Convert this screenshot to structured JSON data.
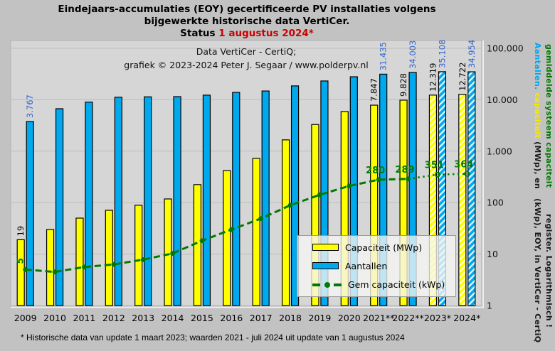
{
  "title": {
    "line1": "Eindejaars-accumulaties (EOY) gecertificeerde PV installaties volgens",
    "line2": "bijgewerkte historische data VertiCer.",
    "status_prefix": "Status ",
    "status_date": "1 augustus 2024*"
  },
  "subtitle": {
    "line1": "Data VertiCer - CertiQ;",
    "line2": "grafiek © 2023-2024 Peter J. Segaar / www.polderpv.nl"
  },
  "right_axis": {
    "line1_segments": [
      {
        "text": "Aantallen.",
        "color": "#00a7ee"
      },
      {
        "text": " capaciteit ",
        "color": "#f5e900"
      },
      {
        "text": "(MWp), en ",
        "color": "#1a1a1a"
      },
      {
        "text": "gemiddelde systeem capaciteit",
        "color": "#007a00"
      }
    ],
    "line2": "(kWp), EOY, in VertiCer - CertiQ register. Logarithmisch !",
    "line2_color": "#1a1a1a"
  },
  "legend": {
    "items": [
      {
        "label": "Capaciteit (MWp)",
        "swatch": "capacity"
      },
      {
        "label": "Aantallen",
        "swatch": "count"
      },
      {
        "label": "Gem capaciteit (kWp)",
        "swatch": "line"
      }
    ]
  },
  "footnote": "* Historische data van update 1 maart 2023; waarden 2021 - juli 2024 uit update van 1 augustus 2024",
  "colors": {
    "background": "#c2c2c2",
    "plot_background": "#d6d6d6",
    "grid": "#bdbdbd",
    "bar_outline": "#000000",
    "capacity_bar": "#ffff00",
    "count_bar": "#00a9ee",
    "count_label": "#3366cc",
    "capacity_label": "#000000",
    "avg_line": "#007a00",
    "status_red": "#cc0000"
  },
  "chart_data": {
    "type": "bar",
    "y_scale": "log",
    "ylim": [
      1,
      100000
    ],
    "grid": true,
    "legend_position": "inside-bottom-right",
    "y_tick_values": [
      100000,
      10000,
      1000,
      100,
      10,
      1
    ],
    "y_tick_labels": [
      "100.000",
      "10.000",
      "1.000",
      "100",
      "10",
      "1"
    ],
    "categories": [
      "2009",
      "2010",
      "2011",
      "2012",
      "2013",
      "2014",
      "2015",
      "2016",
      "2017",
      "2018",
      "2019",
      "2020",
      "2021**",
      "2022**",
      "2023*",
      "2024*"
    ],
    "hatched_from_index": 14,
    "series": [
      {
        "name": "Capaciteit (MWp)",
        "type": "bar",
        "color": "#ffff00",
        "label_color": "#000000",
        "values": [
          19,
          30,
          50,
          71,
          89,
          118,
          224,
          420,
          724,
          1660,
          3300,
          5900,
          7847,
          9828,
          12319,
          12722
        ],
        "value_labels": [
          "19",
          null,
          null,
          null,
          null,
          null,
          null,
          null,
          null,
          null,
          null,
          null,
          "7.847",
          "9.828",
          "12.319",
          "12.722"
        ]
      },
      {
        "name": "Aantallen",
        "type": "bar",
        "color": "#00a9ee",
        "label_color": "#3366cc",
        "values": [
          3767,
          6700,
          9000,
          11200,
          11400,
          11500,
          12300,
          13900,
          14800,
          18600,
          23200,
          28000,
          31435,
          34003,
          35108,
          34954
        ],
        "value_labels": [
          "3.767",
          null,
          null,
          null,
          null,
          null,
          null,
          null,
          null,
          null,
          null,
          null,
          "31.435",
          "34.003",
          "35.108",
          "34.954"
        ]
      },
      {
        "name": "Gem capaciteit (kWp)",
        "type": "line",
        "color": "#007a00",
        "label_color": "#007a00",
        "dashed_until_index": 13,
        "open_marker_from_index": 14,
        "values": [
          5,
          4.5,
          5.6,
          6.3,
          7.8,
          10.3,
          18.2,
          30,
          49,
          89,
          142,
          211,
          280,
          289,
          351,
          364
        ],
        "value_labels": [
          "5",
          null,
          null,
          null,
          null,
          null,
          null,
          null,
          null,
          null,
          null,
          null,
          "280",
          "289",
          "351",
          "364"
        ]
      }
    ]
  }
}
